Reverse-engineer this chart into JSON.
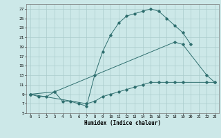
{
  "xlabel": "Humidex (Indice chaleur)",
  "bg_color": "#cce8e8",
  "grid_color": "#aacccc",
  "line_color": "#2e6e6e",
  "xlim": [
    -0.5,
    23.5
  ],
  "ylim": [
    5,
    28
  ],
  "yticks": [
    5,
    7,
    9,
    11,
    13,
    15,
    17,
    19,
    21,
    23,
    25,
    27
  ],
  "xticks": [
    0,
    1,
    2,
    3,
    4,
    5,
    6,
    7,
    8,
    9,
    10,
    11,
    12,
    13,
    14,
    15,
    16,
    17,
    18,
    19,
    20,
    21,
    22,
    23
  ],
  "line1_pts": [
    [
      0,
      9
    ],
    [
      1,
      8.5
    ],
    [
      2,
      8.5
    ],
    [
      3,
      9.5
    ],
    [
      4,
      7.5
    ],
    [
      5,
      7.5
    ],
    [
      6,
      7.0
    ],
    [
      7,
      6.5
    ],
    [
      8,
      13.0
    ],
    [
      9,
      18.0
    ],
    [
      10,
      21.5
    ],
    [
      11,
      24.0
    ],
    [
      12,
      25.5
    ],
    [
      13,
      26.0
    ],
    [
      14,
      26.5
    ],
    [
      15,
      27.0
    ],
    [
      16,
      26.5
    ],
    [
      17,
      25.0
    ],
    [
      18,
      23.5
    ],
    [
      19,
      22.0
    ],
    [
      20,
      19.5
    ]
  ],
  "line2_pts": [
    [
      0,
      9
    ],
    [
      3,
      9.5
    ],
    [
      18,
      20.0
    ],
    [
      19,
      19.5
    ],
    [
      22,
      13.0
    ],
    [
      23,
      11.5
    ]
  ],
  "line3_pts": [
    [
      0,
      9
    ],
    [
      7,
      7.0
    ],
    [
      8,
      7.5
    ],
    [
      9,
      8.5
    ],
    [
      10,
      9.0
    ],
    [
      11,
      9.5
    ],
    [
      12,
      10.0
    ],
    [
      13,
      10.5
    ],
    [
      14,
      11.0
    ],
    [
      15,
      11.5
    ],
    [
      16,
      11.5
    ],
    [
      17,
      11.5
    ],
    [
      18,
      11.5
    ],
    [
      19,
      11.5
    ],
    [
      22,
      11.5
    ],
    [
      23,
      11.5
    ]
  ]
}
